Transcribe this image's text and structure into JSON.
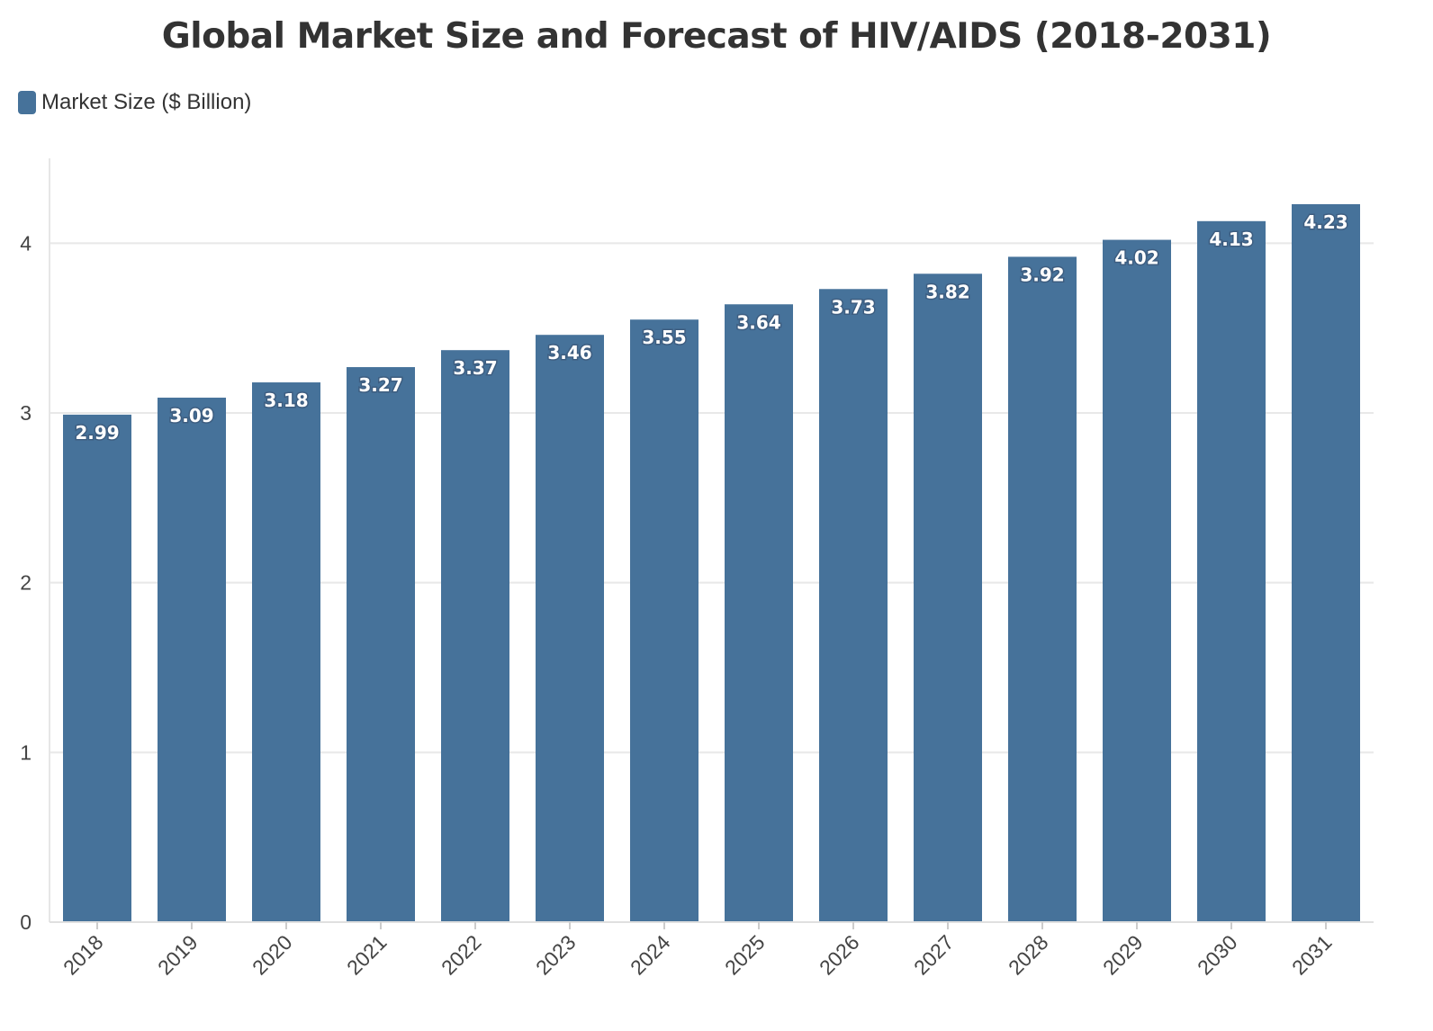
{
  "chart_data": {
    "type": "bar",
    "title": "Global Market Size and Forecast of HIV/AIDS (2018-2031)",
    "categories": [
      "2018",
      "2019",
      "2020",
      "2021",
      "2022",
      "2023",
      "2024",
      "2025",
      "2026",
      "2027",
      "2028",
      "2029",
      "2030",
      "2031"
    ],
    "series": [
      {
        "name": "Market Size ($ Billion)",
        "color": "#46729a",
        "values": [
          2.99,
          3.09,
          3.18,
          3.27,
          3.37,
          3.46,
          3.55,
          3.64,
          3.73,
          3.82,
          3.92,
          4.02,
          4.13,
          4.23
        ]
      }
    ],
    "data_labels": [
      "2.99",
      "3.09",
      "3.18",
      "3.27",
      "3.37",
      "3.46",
      "3.55",
      "3.64",
      "3.73",
      "3.82",
      "3.92",
      "4.02",
      "4.13",
      "4.23"
    ],
    "xlabel": "",
    "ylabel": "",
    "ylim": [
      0,
      4.5
    ],
    "yticks": [
      "0",
      "1",
      "2",
      "3",
      "4"
    ],
    "grid": true,
    "legend": "top-left"
  }
}
